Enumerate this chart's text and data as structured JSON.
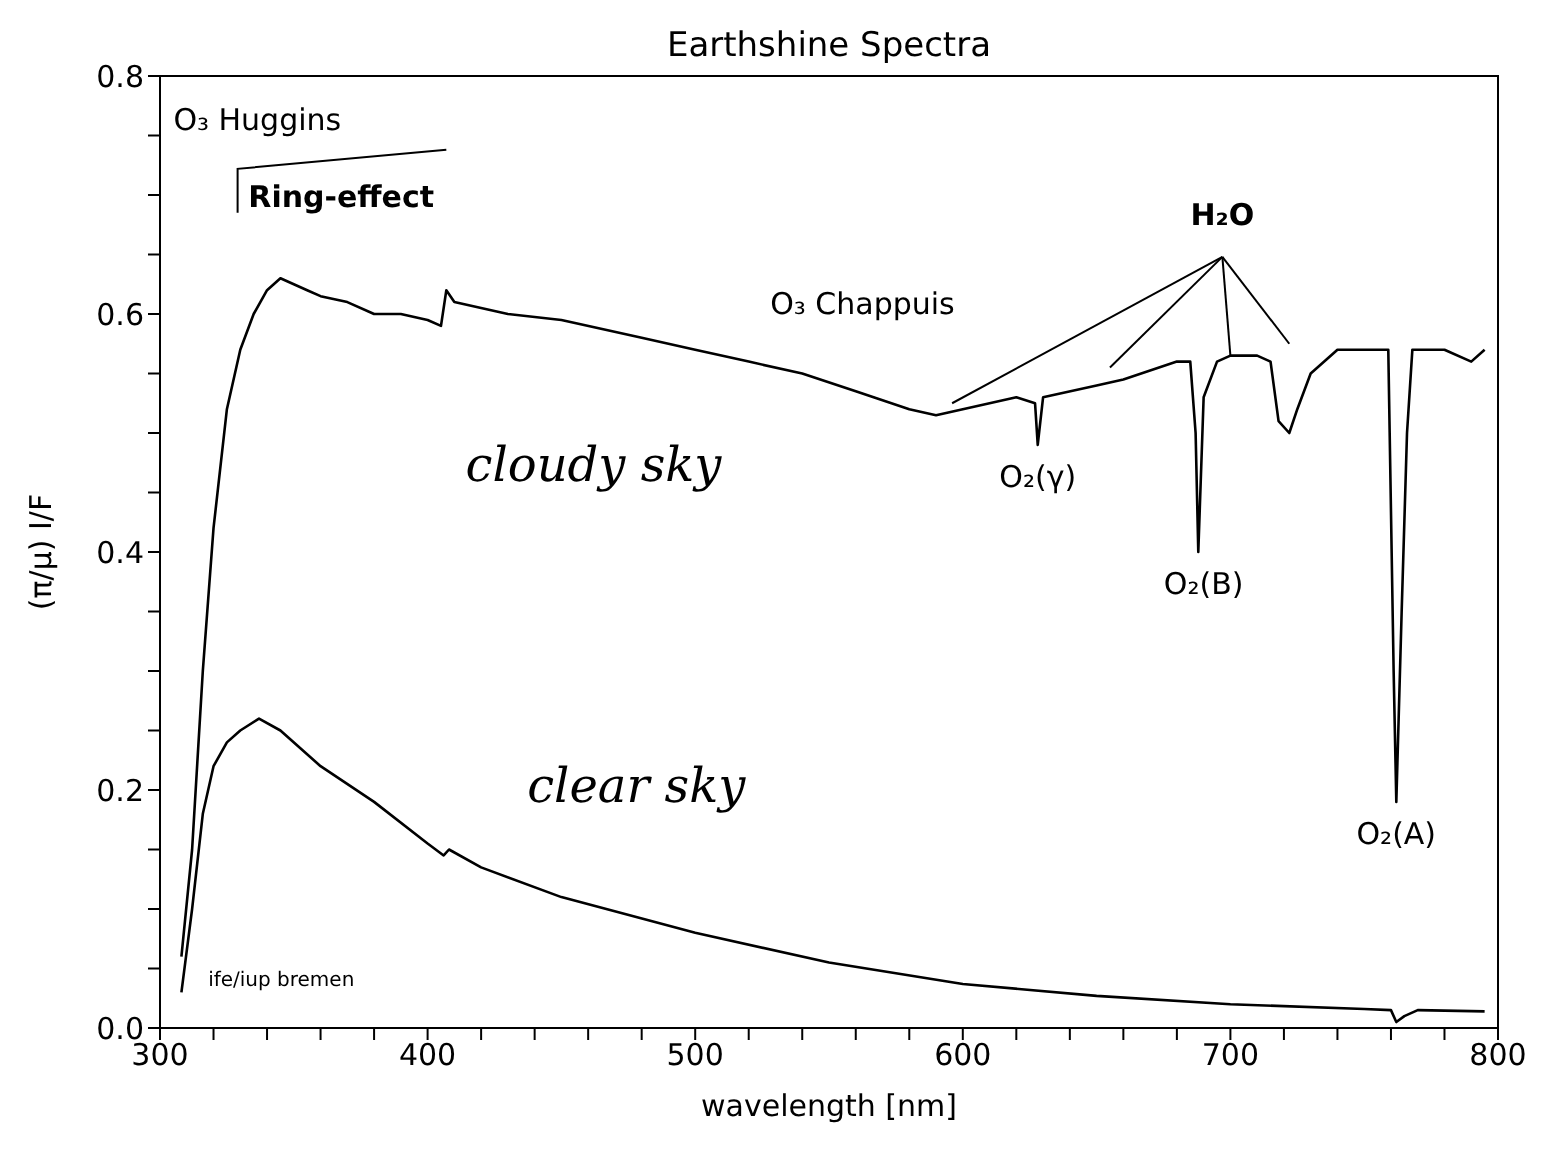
{
  "chart_data": {
    "type": "line",
    "title": "Earthshine Spectra",
    "xlabel": "wavelength [nm]",
    "ylabel": "(π/μ) I/F",
    "xlim": [
      300,
      800
    ],
    "xticks": [
      300,
      {
        "value": 320,
        "label": null
      },
      {
        "value": 340,
        "label": null
      },
      {
        "value": 360,
        "label": null
      },
      {
        "value": 380,
        "label": null
      },
      400,
      {
        "value": 420,
        "label": null
      },
      {
        "value": 440,
        "label": null
      },
      {
        "value": 460,
        "label": null
      },
      {
        "value": 480,
        "label": null
      },
      500,
      {
        "value": 520,
        "label": null
      },
      {
        "value": 540,
        "label": null
      },
      {
        "value": 560,
        "label": null
      },
      {
        "value": 580,
        "label": null
      },
      600,
      {
        "value": 620,
        "label": null
      },
      {
        "value": 640,
        "label": null
      },
      {
        "value": 660,
        "label": null
      },
      {
        "value": 680,
        "label": null
      },
      700,
      {
        "value": 720,
        "label": null
      },
      {
        "value": 740,
        "label": null
      },
      {
        "value": 760,
        "label": null
      },
      {
        "value": 780,
        "label": null
      },
      800
    ],
    "ylim": [
      0,
      0.8
    ],
    "yticks": [
      {
        "value": 0,
        "label": "0.0"
      },
      {
        "value": 0.05,
        "label": null
      },
      {
        "value": 0.1,
        "label": null
      },
      {
        "value": 0.15,
        "label": null
      },
      0.2,
      {
        "value": 0.25,
        "label": null
      },
      {
        "value": 0.3,
        "label": null
      },
      {
        "value": 0.35,
        "label": null
      },
      0.4,
      {
        "value": 0.45,
        "label": null
      },
      {
        "value": 0.5,
        "label": null
      },
      {
        "value": 0.55,
        "label": null
      },
      0.6,
      {
        "value": 0.65,
        "label": null
      },
      {
        "value": 0.7,
        "label": null
      },
      {
        "value": 0.75,
        "label": null
      },
      0.8
    ],
    "marker": "none",
    "line_style": "solid",
    "series": [
      {
        "color": "#000000",
        "x": [
          308,
          312,
          316,
          320,
          325,
          330,
          335,
          340,
          345,
          350,
          355,
          360,
          370,
          380,
          390,
          400,
          405,
          407,
          410,
          430,
          450,
          480,
          500,
          520,
          540,
          560,
          580,
          590,
          600,
          620,
          627,
          628,
          630,
          650,
          660,
          680,
          685,
          687,
          688,
          690,
          695,
          700,
          710,
          715,
          718,
          722,
          725,
          730,
          740,
          755,
          759,
          761,
          762,
          764,
          766,
          768,
          780,
          790,
          795
        ],
        "values": [
          0.06,
          0.15,
          0.3,
          0.42,
          0.52,
          0.57,
          0.6,
          0.62,
          0.63,
          0.625,
          0.62,
          0.615,
          0.61,
          0.6,
          0.6,
          0.595,
          0.59,
          0.62,
          0.61,
          0.6,
          0.595,
          0.58,
          0.57,
          0.56,
          0.55,
          0.535,
          0.52,
          0.515,
          0.52,
          0.53,
          0.525,
          0.49,
          0.53,
          0.54,
          0.545,
          0.56,
          0.56,
          0.5,
          0.4,
          0.53,
          0.56,
          0.565,
          0.565,
          0.56,
          0.51,
          0.5,
          0.52,
          0.55,
          0.57,
          0.57,
          0.57,
          0.3,
          0.19,
          0.35,
          0.5,
          0.57,
          0.57,
          0.56,
          0.57
        ]
      },
      {
        "color": "#000000",
        "x": [
          308,
          312,
          316,
          320,
          325,
          330,
          337,
          345,
          360,
          380,
          400,
          406,
          408,
          420,
          450,
          500,
          550,
          600,
          650,
          700,
          750,
          760,
          762,
          765,
          770,
          795
        ],
        "values": [
          0.03,
          0.1,
          0.18,
          0.22,
          0.24,
          0.25,
          0.26,
          0.25,
          0.22,
          0.19,
          0.155,
          0.145,
          0.15,
          0.135,
          0.11,
          0.08,
          0.055,
          0.037,
          0.027,
          0.02,
          0.016,
          0.015,
          0.005,
          0.01,
          0.015,
          0.014
        ]
      }
    ],
    "annotations": [
      "O₃ Huggins",
      "Ring-effect",
      "O₃ Chappuis",
      {
        "text": "H₂O",
        "x": 700,
        "y": 0.565
      },
      "O₂(γ)",
      "O₂(B)",
      "O₂(A)",
      "cloudy sky",
      "clear sky",
      "ife/iup bremen"
    ]
  }
}
